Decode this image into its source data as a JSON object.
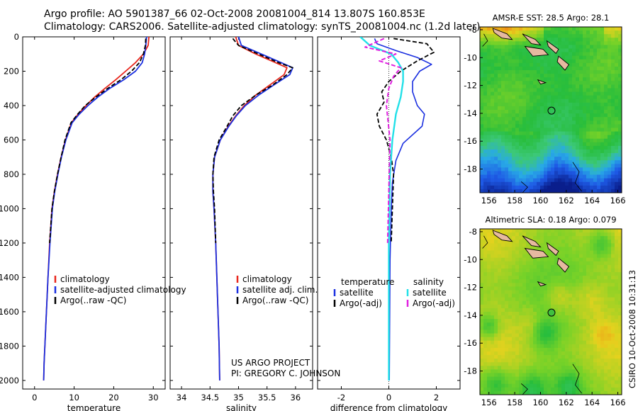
{
  "figure": {
    "title_line1": "Argo profile: AO 5901387_66 02-Oct-2008 20081004_814 13.807S 160.853E",
    "title_line2": "Climatology: CARS2006. Satellite-adjusted climatology: synTS_20081004.nc (1.2d later)",
    "project_line1": "US ARGO PROJECT",
    "project_line2": "PI: GREGORY C. JOHNSON",
    "footer_vertical": "CSIRO 10-Oct-2008 10:31:13"
  },
  "colors": {
    "climatology": "#e8261c",
    "satellite": "#1a2fe0",
    "argo": "#000000",
    "satellite_sal": "#22e0e8",
    "argo_sal": "#e020e0"
  },
  "chart_data": [
    {
      "type": "line",
      "title": "",
      "xlabel": "temperature",
      "ylabel": "",
      "xlim": [
        -3,
        33
      ],
      "ylim": [
        2050,
        0
      ],
      "xticks": [
        "0",
        "10",
        "20",
        "30"
      ],
      "yticks": [
        "0",
        "200",
        "400",
        "600",
        "800",
        "1000",
        "1200",
        "1400",
        "1600",
        "1800",
        "2000"
      ],
      "legend": [
        "climatology",
        "satellite-adjusted climatology",
        "Argo(..raw -QC)"
      ],
      "series": [
        {
          "name": "climatology",
          "x": [
            28.9,
            28.7,
            27.5,
            25.5,
            23.0,
            20.5,
            17.8,
            15.2,
            13.0,
            11.0,
            9.3,
            7.8,
            6.7,
            5.8,
            5.0,
            4.4,
            3.8,
            3.4,
            3.0,
            2.8,
            2.6,
            2.4,
            2.3
          ],
          "y": [
            0,
            50,
            100,
            150,
            200,
            250,
            300,
            350,
            400,
            450,
            500,
            600,
            700,
            800,
            900,
            1000,
            1200,
            1400,
            1600,
            1700,
            1800,
            1900,
            2000
          ]
        },
        {
          "name": "satellite-adjusted climatology",
          "x": [
            28.3,
            28.1,
            27.8,
            27.2,
            25.5,
            22.5,
            19.0,
            16.0,
            13.5,
            11.3,
            9.5,
            7.9,
            6.8,
            5.9,
            5.1,
            4.5,
            3.9,
            3.4,
            3.0,
            2.8,
            2.6,
            2.4,
            2.3
          ],
          "y": [
            0,
            50,
            100,
            150,
            200,
            250,
            300,
            350,
            400,
            450,
            500,
            600,
            700,
            800,
            900,
            1000,
            1200,
            1400,
            1600,
            1700,
            1800,
            1900,
            2000
          ]
        },
        {
          "name": "Argo(..raw -QC)",
          "x": [
            28.1,
            28.0,
            27.5,
            26.5,
            24.5,
            21.8,
            18.5,
            15.5,
            12.8,
            10.9,
            9.2,
            7.7,
            6.7,
            5.8,
            5.0,
            4.4,
            3.8
          ],
          "y": [
            10,
            50,
            100,
            150,
            200,
            250,
            300,
            350,
            400,
            450,
            500,
            600,
            700,
            800,
            900,
            1000,
            1200
          ]
        }
      ]
    },
    {
      "type": "line",
      "title": "",
      "xlabel": "salinity",
      "ylabel": "",
      "xlim": [
        33.8,
        36.3
      ],
      "ylim": [
        2050,
        0
      ],
      "xticks": [
        "34",
        "34.5",
        "35",
        "35.5",
        "36"
      ],
      "legend": [
        "climatology",
        "satellite adj. clim.",
        "Argo(..raw -QC)"
      ],
      "series": [
        {
          "name": "climatology",
          "x": [
            34.95,
            35.0,
            35.3,
            35.65,
            35.85,
            35.8,
            35.55,
            35.3,
            35.1,
            34.95,
            34.82,
            34.68,
            34.58,
            34.55,
            34.55,
            34.57,
            34.6,
            34.62,
            34.64,
            34.66,
            34.67
          ],
          "y": [
            0,
            50,
            100,
            150,
            180,
            220,
            280,
            340,
            400,
            460,
            520,
            600,
            700,
            800,
            900,
            1000,
            1200,
            1400,
            1600,
            1800,
            2000
          ]
        },
        {
          "name": "satellite adj. clim.",
          "x": [
            35.0,
            35.05,
            35.4,
            35.75,
            35.95,
            35.9,
            35.62,
            35.35,
            35.12,
            34.96,
            34.83,
            34.68,
            34.58,
            34.55,
            34.55,
            34.57,
            34.6,
            34.62,
            34.64,
            34.66,
            34.67
          ],
          "y": [
            0,
            50,
            100,
            150,
            180,
            220,
            280,
            340,
            400,
            460,
            520,
            600,
            700,
            800,
            900,
            1000,
            1200,
            1400,
            1600,
            1800,
            2000
          ]
        },
        {
          "name": "Argo(..raw -QC)",
          "x": [
            34.9,
            35.0,
            35.35,
            35.7,
            35.95,
            35.85,
            35.6,
            35.3,
            35.05,
            34.9,
            34.8,
            34.66,
            34.57,
            34.55,
            34.56,
            34.58,
            34.6
          ],
          "y": [
            10,
            50,
            100,
            150,
            180,
            220,
            280,
            340,
            400,
            460,
            520,
            600,
            700,
            800,
            900,
            1000,
            1200
          ]
        }
      ]
    },
    {
      "type": "line",
      "title": "",
      "xlabel": "difference from climatology",
      "ylabel": "",
      "xlim": [
        -3,
        3
      ],
      "ylim": [
        2050,
        0
      ],
      "xticks": [
        "-2",
        "0",
        "2"
      ],
      "legend_temperature_header": "temperature",
      "legend_salinity_header": "salinity",
      "legend": [
        "satellite",
        "Argo(-adj)",
        "satellite",
        "Argo(-adj)"
      ],
      "series": [
        {
          "name": "temperature satellite",
          "x": [
            -0.6,
            -0.5,
            0.3,
            1.2,
            1.8,
            1.3,
            1.0,
            1.0,
            1.2,
            1.5,
            1.4,
            0.6,
            0.3,
            0.15,
            0.1,
            0.05,
            0.02
          ],
          "y": [
            10,
            40,
            80,
            120,
            160,
            200,
            260,
            320,
            400,
            450,
            520,
            620,
            720,
            850,
            1000,
            1300,
            2000
          ]
        },
        {
          "name": "temperature Argo(-adj)",
          "x": [
            0.2,
            1.6,
            1.9,
            1.2,
            0.5,
            0.0,
            -0.3,
            -0.2,
            -0.5,
            -0.4,
            -0.1,
            0.1,
            0.2,
            0.15,
            0.1
          ],
          "y": [
            10,
            40,
            90,
            140,
            200,
            260,
            320,
            380,
            450,
            520,
            600,
            700,
            800,
            1000,
            1200
          ]
        },
        {
          "name": "salinity satellite",
          "x": [
            -1.2,
            -0.8,
            0.1,
            0.4,
            0.6,
            0.6,
            0.5,
            0.3,
            0.15,
            0.05,
            0.0,
            0.0
          ],
          "y": [
            0,
            50,
            100,
            150,
            200,
            260,
            350,
            450,
            600,
            800,
            1200,
            2000
          ]
        },
        {
          "name": "salinity Argo(-adj)",
          "x": [
            -0.2,
            -1.0,
            0.3,
            -0.4,
            0.5,
            0.2,
            0.0,
            -0.1,
            0.05,
            0.0,
            -0.05
          ],
          "y": [
            10,
            60,
            100,
            140,
            180,
            230,
            300,
            400,
            600,
            900,
            1200
          ]
        }
      ]
    },
    {
      "type": "heatmap",
      "title": "AMSR-E SST: 28.5 Argo: 28.1",
      "xticks": [
        "156",
        "158",
        "160",
        "162",
        "164",
        "166"
      ],
      "yticks": [
        "-8",
        "-10",
        "-12",
        "-14",
        "-16",
        "-18"
      ],
      "xlim": [
        155.3,
        166.3
      ],
      "ylim": [
        -19.7,
        -7.8
      ],
      "marker": {
        "lon": 160.853,
        "lat": -13.807
      },
      "field": "SST"
    },
    {
      "type": "heatmap",
      "title": "Altimetric SLA: 0.18 Argo: 0.079",
      "xticks": [
        "156",
        "158",
        "160",
        "162",
        "164",
        "166"
      ],
      "yticks": [
        "-8",
        "-10",
        "-12",
        "-14",
        "-16",
        "-18"
      ],
      "xlim": [
        155.3,
        166.3
      ],
      "ylim": [
        -19.7,
        -7.8
      ],
      "marker": {
        "lon": 160.853,
        "lat": -13.807
      },
      "field": "SLA"
    }
  ]
}
